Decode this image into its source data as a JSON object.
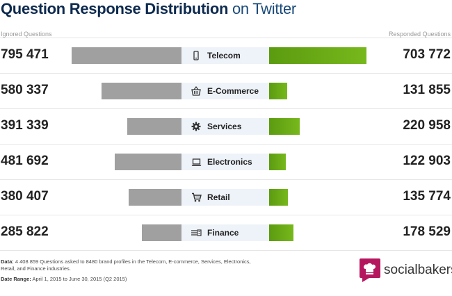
{
  "title": {
    "bold": "Question Response Distribution",
    "light": "on Twitter"
  },
  "headers": {
    "left": "Ignored Questions",
    "right": "Responded Questions"
  },
  "colors": {
    "ignored": "#a0a0a0",
    "responded": "#6aaa15",
    "category_bg": "#eef3f9",
    "title": "#0d2a4f"
  },
  "chart_data": {
    "type": "bar",
    "title": "Question Response Distribution on Twitter",
    "categories": [
      "Telecom",
      "E-Commerce",
      "Services",
      "Electronics",
      "Retail",
      "Finance"
    ],
    "icons": [
      "phone-icon",
      "basket-icon",
      "gear-icon",
      "laptop-icon",
      "cart-icon",
      "money-icon"
    ],
    "series": [
      {
        "name": "Ignored Questions",
        "values": [
          795471,
          580337,
          391339,
          481692,
          380407,
          285822
        ]
      },
      {
        "name": "Responded Questions",
        "values": [
          703772,
          131855,
          220958,
          122903,
          135774,
          178529
        ]
      }
    ],
    "labels": {
      "ignored": [
        "795 471",
        "580 337",
        "391 339",
        "481 692",
        "380 407",
        "285 822"
      ],
      "responded": [
        "703 772",
        "131 855",
        "220 958",
        "122 903",
        "135 774",
        "178 529"
      ]
    }
  },
  "footnote": {
    "data_label": "Data:",
    "data_text": "4 408 859 Questions asked to 8480 brand profiles in the Telecom, E-commerce, Services, Electronics, Retail, and Finance industries.",
    "range_label": "Date Range:",
    "range_text": "April 1, 2015 to June 30, 2015 (Q2 2015)"
  },
  "logo": {
    "text": "socialbakers",
    "icon": "chef-hat-icon",
    "color": "#b5175f"
  }
}
